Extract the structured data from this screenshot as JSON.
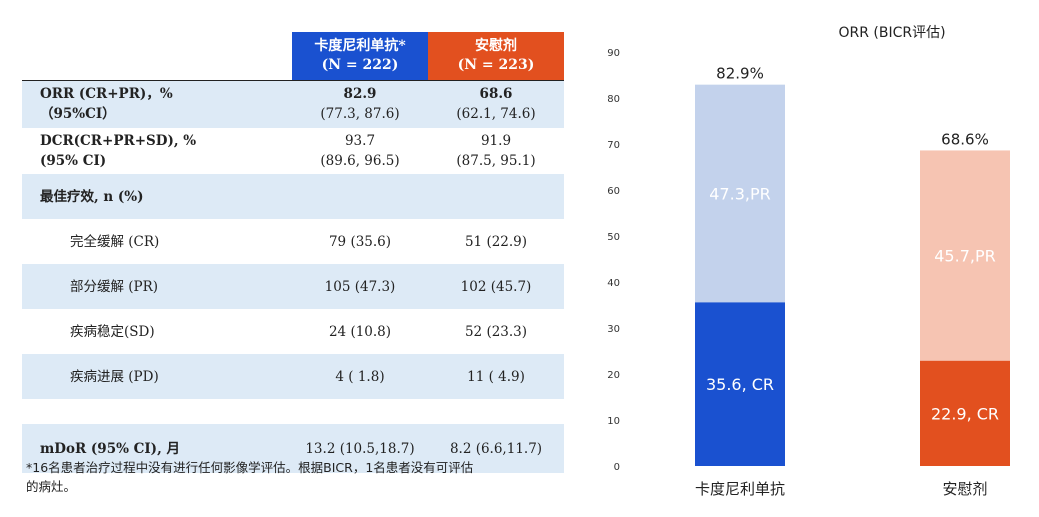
{
  "table": {
    "header": {
      "arm_a_name": "卡度尼利单抗*",
      "arm_a_n": "(N = 222)",
      "arm_b_name": "安慰剂",
      "arm_b_n": "(N = 223)"
    },
    "rows": [
      {
        "label_line1": "ORR (CR+PR)，%",
        "label_line2": "（95%CI）",
        "a_line1": "82.9",
        "a_line2": "(77.3, 87.6)",
        "b_line1": "68.6",
        "b_line2": "(62.1, 74.6)"
      },
      {
        "label_line1": "DCR(CR+PR+SD), %",
        "label_line2": "(95% CI)",
        "a_line1": "93.7",
        "a_line2": "(89.6, 96.5)",
        "b_line1": "91.9",
        "b_line2": "(87.5, 95.1)"
      },
      {
        "label": "最佳疗效, n (%)"
      },
      {
        "label": "完全缓解 (CR)",
        "a": "79 (35.6)",
        "b": "51 (22.9)"
      },
      {
        "label": "部分缓解 (PR)",
        "a": "105 (47.3)",
        "b": "102 (45.7)"
      },
      {
        "label": "疾病稳定(SD)",
        "a": "24 (10.8)",
        "b": "52 (23.3)"
      },
      {
        "label": "疾病进展 (PD)",
        "a": "4 ( 1.8)",
        "b": "11 ( 4.9)"
      },
      {
        "label": "mDoR (95% CI), 月",
        "a": "13.2 (10.5,18.7)",
        "b": "8.2 (6.6,11.7)"
      }
    ]
  },
  "footnote": {
    "line1": "*16名患者治疗过程中没有进行任何影像学评估。根据BICR，1名患者没有可评估",
    "line2": "的病灶。"
  },
  "chart_data": {
    "type": "bar",
    "stacked": true,
    "title": "ORR (BICR评估)",
    "categories": [
      "卡度尼利单抗",
      "安慰剂"
    ],
    "series": [
      {
        "key": "cr",
        "values": [
          35.6,
          22.9
        ],
        "labels": [
          "35.6, CR",
          "22.9, CR"
        ],
        "colors": [
          "#1a51d0",
          "#e2501f"
        ]
      },
      {
        "key": "pr",
        "values": [
          47.3,
          45.7
        ],
        "labels": [
          "47.3,PR",
          "45.7,PR"
        ],
        "colors": [
          "#c3d2ec",
          "#f6c4b2"
        ]
      }
    ],
    "totals": [
      82.9,
      68.6
    ],
    "total_labels": [
      "82.9%",
      "68.6%"
    ],
    "ylim": [
      0,
      90
    ],
    "yticks": [
      0,
      10,
      20,
      30,
      40,
      50,
      60,
      70,
      80,
      90
    ],
    "grid": false,
    "legend": "none"
  }
}
